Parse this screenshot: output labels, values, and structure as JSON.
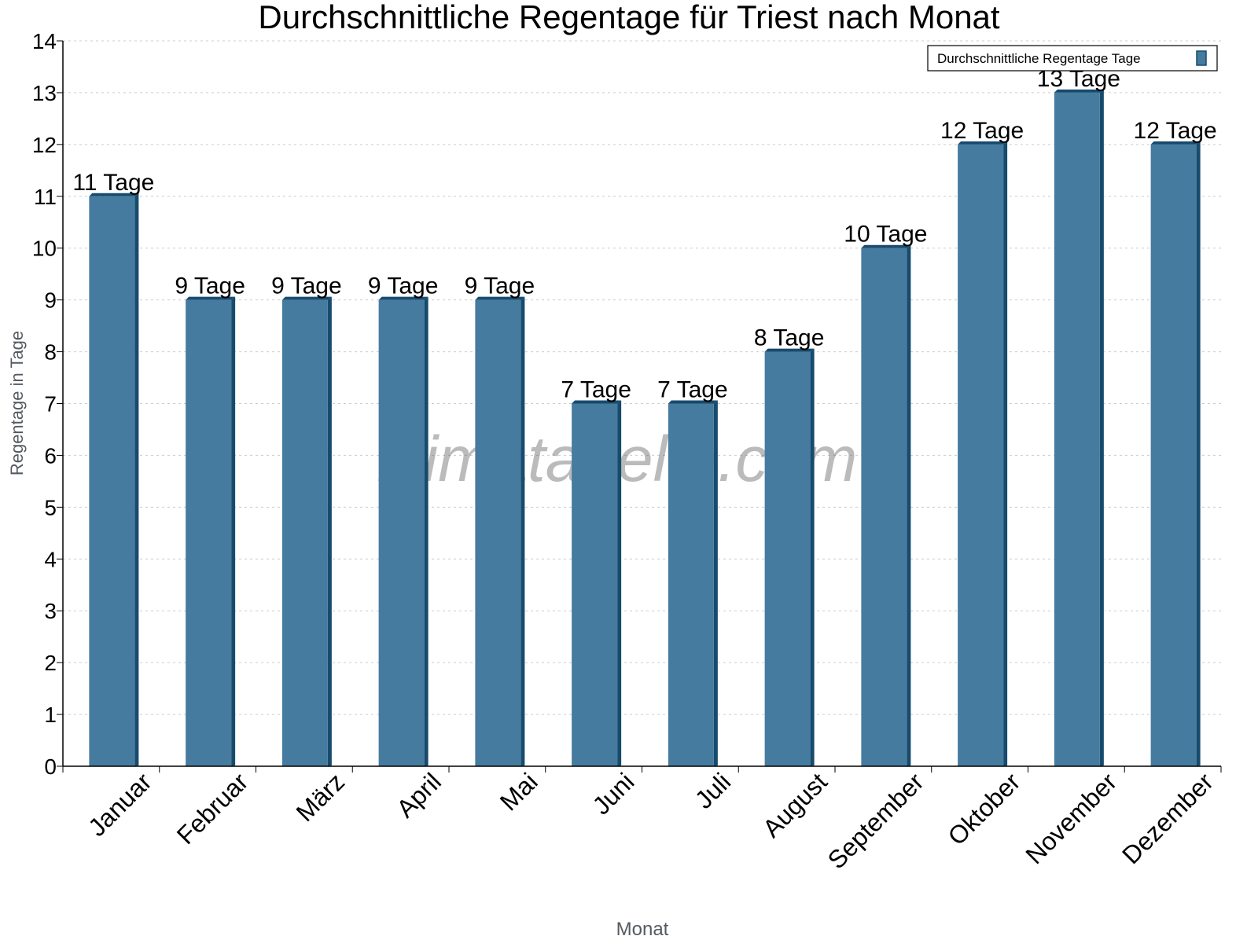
{
  "chart_data": {
    "type": "bar",
    "title": "Durchschnittliche Regentage für Triest nach Monat",
    "xlabel": "Monat",
    "ylabel": "Regentage in Tage",
    "categories": [
      "Januar",
      "Februar",
      "März",
      "April",
      "Mai",
      "Juni",
      "Juli",
      "August",
      "September",
      "Oktober",
      "November",
      "Dezember"
    ],
    "series": [
      {
        "name": "Durchschnittliche Regentage Tage",
        "values": [
          11,
          9,
          9,
          9,
          9,
          7,
          7,
          8,
          10,
          12,
          13,
          12
        ]
      }
    ],
    "data_labels": [
      "11 Tage",
      "9 Tage",
      "9 Tage",
      "9 Tage",
      "9 Tage",
      "7 Tage",
      "7 Tage",
      "8 Tage",
      "10 Tage",
      "12 Tage",
      "13 Tage",
      "12 Tage"
    ],
    "ylim": [
      0,
      14
    ],
    "yticks": [
      "0",
      "1",
      "2",
      "3",
      "4",
      "5",
      "6",
      "7",
      "8",
      "9",
      "10",
      "11",
      "12",
      "13",
      "14"
    ],
    "grid": true,
    "legend_position": "top-right",
    "colors": {
      "bar": "#467ba0",
      "bar_side": "#174b6e",
      "grid": "#cccccc",
      "axis_label": "#555a60"
    },
    "watermark": "klimatabelle.com"
  }
}
